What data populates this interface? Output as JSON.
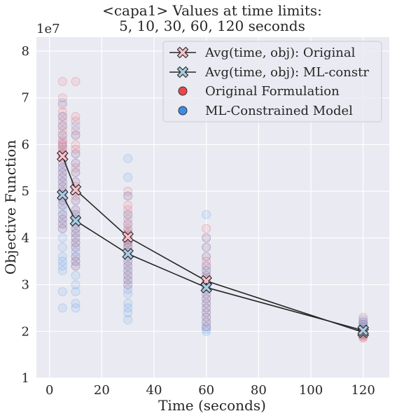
{
  "chart_data": {
    "type": "scatter",
    "title_line1": "<capa1> Values at time limits:",
    "title_line2": "5, 10, 30, 60, 120 seconds",
    "xlabel": "Time (seconds)",
    "ylabel": "Objective Function",
    "y_offset_label": "1e7",
    "xlim": [
      -5,
      130
    ],
    "ylim": [
      10000000.0,
      83000000.0
    ],
    "xticks": [
      0,
      20,
      40,
      60,
      80,
      100,
      120
    ],
    "yticks": [
      10000000.0,
      20000000.0,
      30000000.0,
      40000000.0,
      50000000.0,
      60000000.0,
      70000000.0,
      80000000.0
    ],
    "ytick_labels": [
      "1",
      "2",
      "3",
      "4",
      "5",
      "6",
      "7",
      "8"
    ],
    "grid": true,
    "legend_position": "top-right",
    "colors": {
      "background": "#EAEAF2",
      "grid": "#FFFFFF",
      "original_points": "#E8474C",
      "ml_points": "#3A8EE6",
      "original_marker": "#FFC0CB",
      "ml_marker": "#A6CEE3",
      "line": "#262626"
    },
    "series": [
      {
        "name": "Avg(time, obj): Original",
        "kind": "line",
        "x": [
          5,
          10,
          30,
          60,
          120
        ],
        "y": [
          57500000.0,
          50300000.0,
          40200000.0,
          30800000.0,
          19800000.0
        ]
      },
      {
        "name": "Avg(time, obj): ML-constr",
        "kind": "line",
        "x": [
          5,
          10,
          30,
          60,
          120
        ],
        "y": [
          49200000.0,
          43700000.0,
          36600000.0,
          29400000.0,
          20200000.0
        ]
      },
      {
        "name": "Original Formulation",
        "kind": "scatter",
        "x": [
          5,
          5,
          5,
          5,
          5,
          5,
          5,
          5,
          5,
          5,
          5,
          5,
          5,
          5,
          5,
          5,
          5,
          5,
          5,
          5,
          5,
          5,
          5,
          5,
          5,
          5,
          5,
          5,
          5,
          5,
          5,
          5,
          10,
          10,
          10,
          10,
          10,
          10,
          10,
          10,
          10,
          10,
          10,
          10,
          10,
          10,
          10,
          10,
          10,
          10,
          10,
          10,
          10,
          10,
          10,
          10,
          10,
          10,
          10,
          10,
          30,
          30,
          30,
          30,
          30,
          30,
          30,
          30,
          30,
          30,
          30,
          30,
          30,
          30,
          30,
          30,
          30,
          30,
          30,
          30,
          30,
          30,
          30,
          30,
          60,
          60,
          60,
          60,
          60,
          60,
          60,
          60,
          60,
          60,
          60,
          60,
          60,
          60,
          60,
          60,
          60,
          60,
          60,
          60,
          60,
          60,
          120,
          120,
          120,
          120,
          120,
          120,
          120,
          120,
          120,
          120,
          120,
          120
        ],
        "y": [
          73500000.0,
          70000000.0,
          68500000.0,
          67000000.0,
          66000000.0,
          65000000.0,
          64000000.0,
          63000000.0,
          62000000.0,
          61000000.0,
          60500000.0,
          60000000.0,
          59500000.0,
          59000000.0,
          58500000.0,
          58000000.0,
          57500000.0,
          57000000.0,
          56000000.0,
          55000000.0,
          54000000.0,
          53000000.0,
          52000000.0,
          51000000.0,
          50000000.0,
          49000000.0,
          48000000.0,
          47000000.0,
          45000000.0,
          44000000.0,
          43000000.0,
          42000000.0,
          73500000.0,
          66000000.0,
          65000000.0,
          63000000.0,
          62000000.0,
          60000000.0,
          59000000.0,
          58000000.0,
          56000000.0,
          55000000.0,
          54000000.0,
          52000000.0,
          51000000.0,
          50000000.0,
          49000000.0,
          48000000.0,
          46000000.0,
          45000000.0,
          44000000.0,
          43000000.0,
          42000000.0,
          41000000.0,
          40000000.0,
          39000000.0,
          38000000.0,
          36000000.0,
          35000000.0,
          34000000.0,
          50000000.0,
          49000000.0,
          47000000.0,
          46000000.0,
          45000000.0,
          44000000.0,
          43000000.0,
          42000000.0,
          41500000.0,
          41000000.0,
          40500000.0,
          40000000.0,
          39500000.0,
          39000000.0,
          38500000.0,
          38000000.0,
          37000000.0,
          36000000.0,
          35000000.0,
          34000000.0,
          33000000.0,
          32000000.0,
          31000000.0,
          30000000.0,
          42000000.0,
          40000000.0,
          38000000.0,
          36000000.0,
          35000000.0,
          34000000.0,
          33000000.0,
          32000000.0,
          31500000.0,
          31000000.0,
          30500000.0,
          30000000.0,
          29500000.0,
          29000000.0,
          28000000.0,
          27000000.0,
          26000000.0,
          25000000.0,
          24000000.0,
          23000000.0,
          22000000.0,
          21000000.0,
          23000000.0,
          22000000.0,
          21500000.0,
          21000000.0,
          20500000.0,
          20000000.0,
          19800000.0,
          19500000.0,
          19300000.0,
          19000000.0,
          18800000.0,
          18600000.0
        ]
      },
      {
        "name": "ML-Constrained Model",
        "kind": "scatter",
        "x": [
          5,
          5,
          5,
          5,
          5,
          5,
          5,
          5,
          5,
          5,
          5,
          5,
          5,
          5,
          5,
          5,
          5,
          5,
          5,
          5,
          5,
          5,
          5,
          5,
          5,
          5,
          5,
          5,
          5,
          10,
          10,
          10,
          10,
          10,
          10,
          10,
          10,
          10,
          10,
          10,
          10,
          10,
          10,
          10,
          10,
          10,
          10,
          10,
          10,
          10,
          10,
          10,
          10,
          10,
          10,
          30,
          30,
          30,
          30,
          30,
          30,
          30,
          30,
          30,
          30,
          30,
          30,
          30,
          30,
          30,
          30,
          30,
          30,
          30,
          30,
          30,
          30,
          30,
          60,
          60,
          60,
          60,
          60,
          60,
          60,
          60,
          60,
          60,
          60,
          60,
          60,
          60,
          60,
          60,
          60,
          60,
          60,
          60,
          60,
          120,
          120,
          120,
          120,
          120,
          120,
          120,
          120,
          120
        ],
        "y": [
          69000000.0,
          66000000.0,
          64000000.0,
          62000000.0,
          60000000.0,
          58000000.0,
          56000000.0,
          55000000.0,
          54000000.0,
          53000000.0,
          52000000.0,
          51000000.0,
          50000000.0,
          49000000.0,
          48000000.0,
          47000000.0,
          46000000.0,
          45000000.0,
          44000000.0,
          43000000.0,
          42000000.0,
          40000000.0,
          38000000.0,
          36000000.0,
          35000000.0,
          34000000.0,
          33000000.0,
          28500000.0,
          25000000.0,
          64000000.0,
          62000000.0,
          58000000.0,
          56000000.0,
          54000000.0,
          52000000.0,
          50000000.0,
          48000000.0,
          46000000.0,
          45000000.0,
          44000000.0,
          43000000.0,
          42000000.0,
          41000000.0,
          40000000.0,
          39000000.0,
          38000000.0,
          37000000.0,
          36000000.0,
          35000000.0,
          34000000.0,
          32000000.0,
          30000000.0,
          28500000.0,
          26000000.0,
          25000000.0,
          57000000.0,
          53000000.0,
          49000000.0,
          45000000.0,
          43000000.0,
          41000000.0,
          40000000.0,
          39000000.0,
          38000000.0,
          37000000.0,
          36000000.0,
          35000000.0,
          34000000.0,
          33000000.0,
          32000000.0,
          31000000.0,
          30000000.0,
          29000000.0,
          28000000.0,
          26000000.0,
          25000000.0,
          24000000.0,
          22500000.0,
          45000000.0,
          40000000.0,
          38000000.0,
          36000000.0,
          34000000.0,
          33000000.0,
          32000000.0,
          31000000.0,
          30000000.0,
          29500000.0,
          29000000.0,
          28000000.0,
          27000000.0,
          26000000.0,
          25000000.0,
          24000000.0,
          23000000.0,
          22000000.0,
          21000000.0,
          20500000.0,
          20000000.0,
          22500000.0,
          22000000.0,
          21500000.0,
          21000000.0,
          20500000.0,
          20000000.0,
          19700000.0,
          19500000.0,
          19200000.0
        ]
      }
    ]
  }
}
